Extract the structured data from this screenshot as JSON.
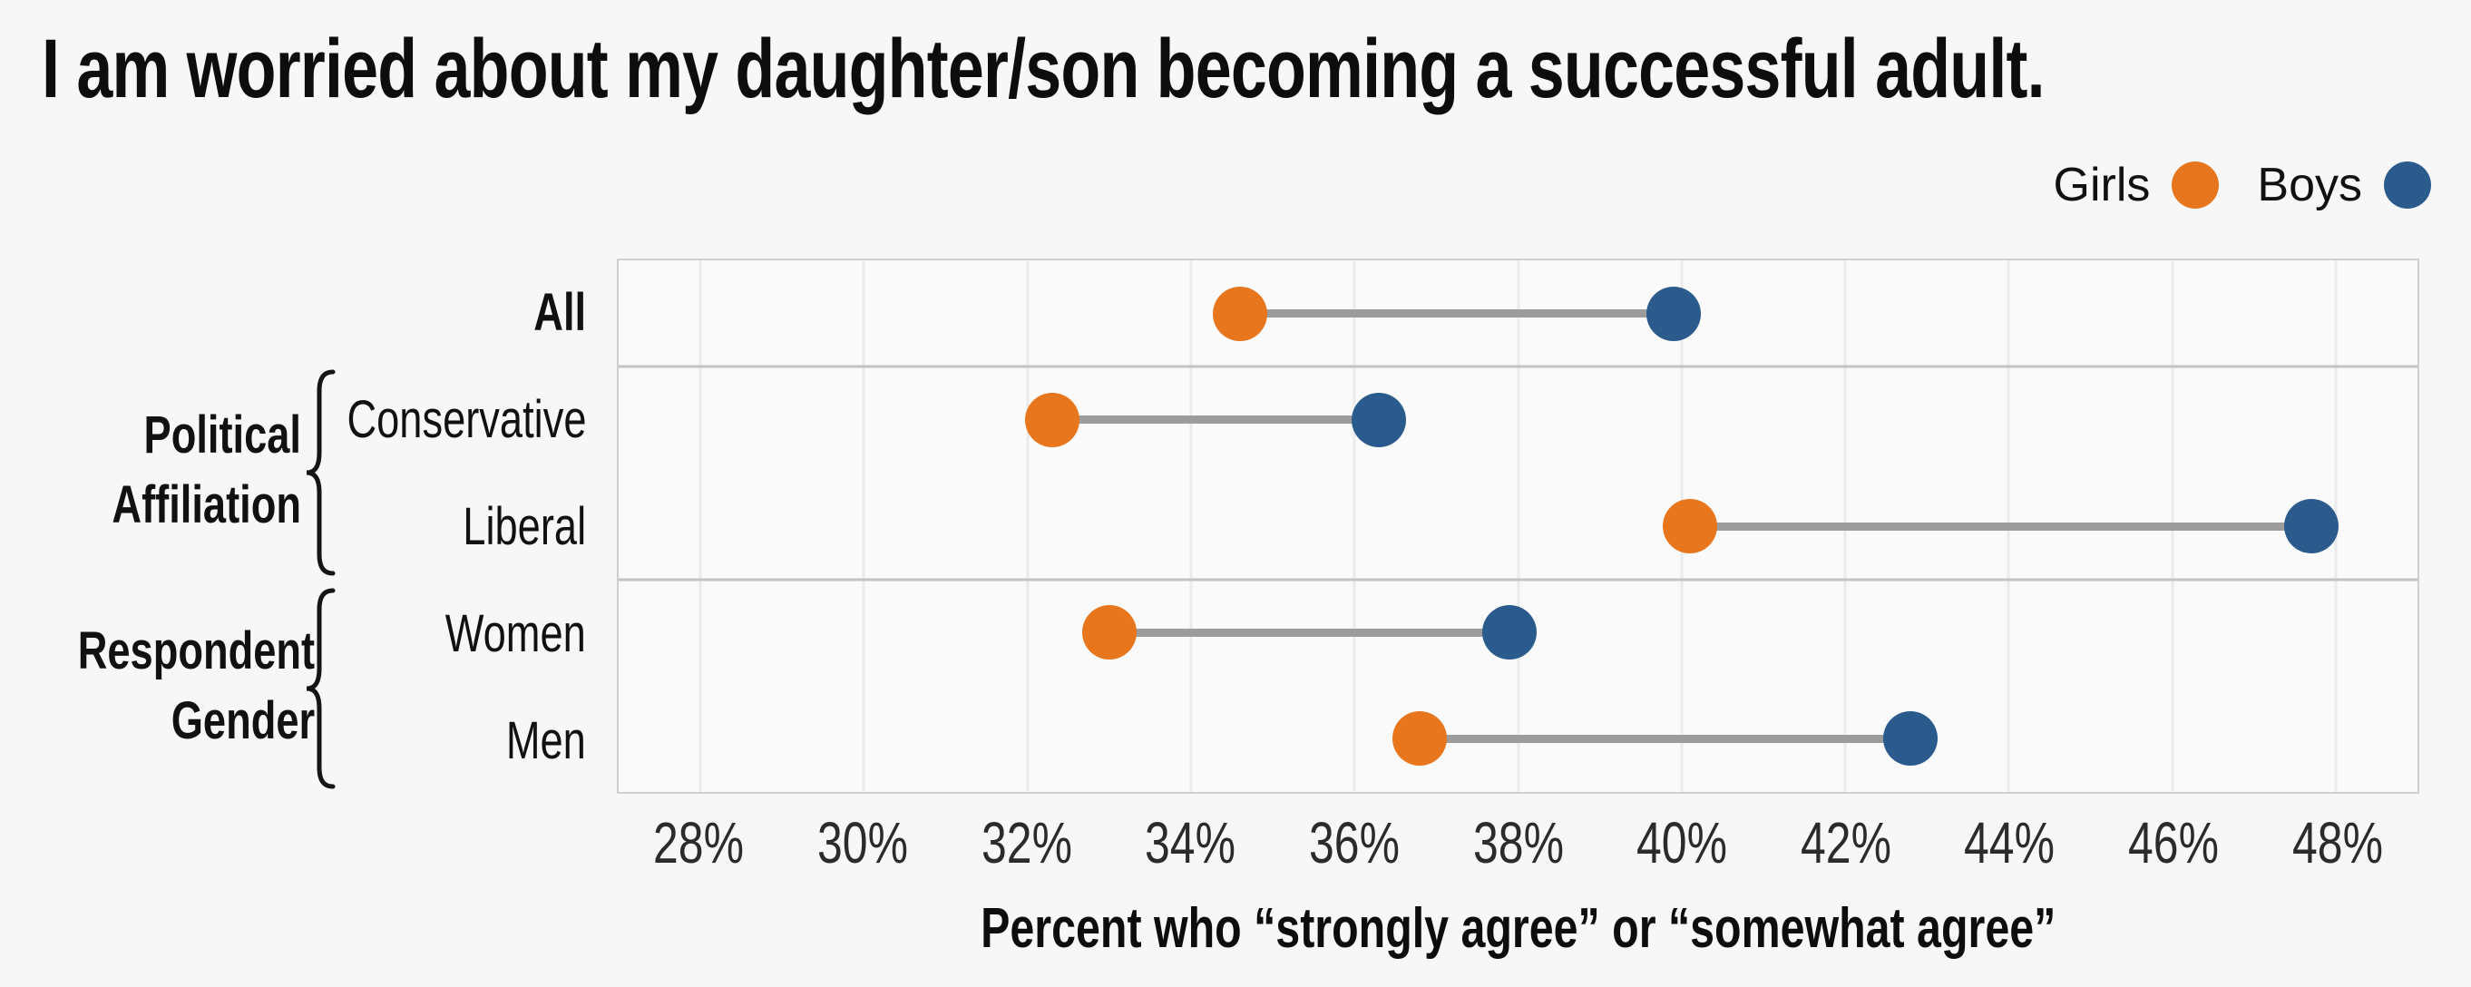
{
  "chart_data": {
    "type": "scatter",
    "variant": "dumbbell",
    "title": "I am worried about my daughter/son becoming a successful adult.",
    "xlabel": "Percent who “strongly agree” or “somewhat agree”",
    "categories": [
      "All",
      "Conservative",
      "Liberal",
      "Women",
      "Men"
    ],
    "groups": [
      {
        "label": "Political Affiliation",
        "rows": [
          "Conservative",
          "Liberal"
        ]
      },
      {
        "label": "Respondent Gender",
        "rows": [
          "Women",
          "Men"
        ]
      }
    ],
    "series": [
      {
        "name": "Girls",
        "color": "#e7761d",
        "values": [
          34.6,
          32.3,
          40.1,
          33.0,
          36.8
        ]
      },
      {
        "name": "Boys",
        "color": "#2a5b8c",
        "values": [
          39.9,
          36.3,
          47.7,
          37.9,
          42.8
        ]
      }
    ],
    "xlim": [
      27,
      49
    ],
    "x_tick_values": [
      28,
      30,
      32,
      34,
      36,
      38,
      40,
      42,
      44,
      46,
      48
    ],
    "x_tick_labels": [
      "28%",
      "30%",
      "32%",
      "34%",
      "36%",
      "38%",
      "40%",
      "42%",
      "44%",
      "46%",
      "48%"
    ],
    "grid": true,
    "legend_position": "top-right",
    "connector_color": "#9c9c9c",
    "separators_after_row": [
      1,
      3
    ]
  }
}
